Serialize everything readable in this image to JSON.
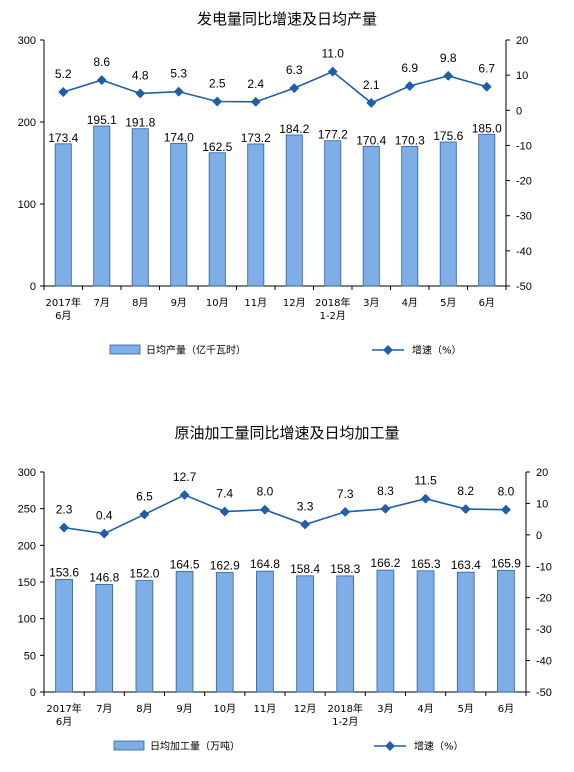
{
  "colors": {
    "bar": "#7eaee6",
    "bar_stroke": "#2f5f9e",
    "line": "#1f5ea8",
    "axis": "#000000"
  },
  "chart_data": [
    {
      "type": "bar",
      "title": "发电量同比增速及日均产量",
      "categories": [
        "2017年|6月",
        "7月",
        "8月",
        "9月",
        "10月",
        "11月",
        "12月",
        "2018年|1-2月",
        "3月",
        "4月",
        "5月",
        "6月"
      ],
      "ylim": [
        0,
        300
      ],
      "yticks": [
        "0",
        "100",
        "200",
        "300"
      ],
      "y2lim": [
        -50,
        20
      ],
      "y2ticks": [
        "20",
        "10",
        "0",
        "-10",
        "-20",
        "-30",
        "-40",
        "-50"
      ],
      "series": [
        {
          "name": "日均产量（亿千瓦时）",
          "type": "bar",
          "values": [
            173.4,
            195.1,
            191.8,
            174.0,
            162.5,
            173.2,
            184.2,
            177.2,
            170.4,
            170.3,
            175.6,
            185.0
          ],
          "labels": [
            "173.4",
            "195.1",
            "191.8",
            "174.0",
            "162.5",
            "173.2",
            "184.2",
            "177.2",
            "170.4",
            "170.3",
            "175.6",
            "185.0"
          ]
        },
        {
          "name": "增速（%）",
          "type": "line",
          "axis": "right",
          "values": [
            5.2,
            8.6,
            4.8,
            5.3,
            2.5,
            2.4,
            6.3,
            11.0,
            2.1,
            6.9,
            9.8,
            6.7
          ],
          "labels": [
            "5.2",
            "8.6",
            "4.8",
            "5.3",
            "2.5",
            "2.4",
            "6.3",
            "11.0",
            "2.1",
            "6.9",
            "9.8",
            "6.7"
          ]
        }
      ],
      "legend_position": "bottom"
    },
    {
      "type": "bar",
      "title": "原油加工量同比增速及日均加工量",
      "categories": [
        "2017年|6月",
        "7月",
        "8月",
        "9月",
        "10月",
        "11月",
        "12月",
        "2018年|1-2月",
        "3月",
        "4月",
        "5月",
        "6月"
      ],
      "ylim": [
        0,
        300
      ],
      "yticks": [
        "0",
        "50",
        "100",
        "150",
        "200",
        "250",
        "300"
      ],
      "y2lim": [
        -50,
        20
      ],
      "y2ticks": [
        "20",
        "10",
        "0",
        "-10",
        "-20",
        "-30",
        "-40",
        "-50"
      ],
      "series": [
        {
          "name": "日均加工量（万吨）",
          "type": "bar",
          "values": [
            153.6,
            146.8,
            152.0,
            164.5,
            162.9,
            164.8,
            158.4,
            158.3,
            166.2,
            165.3,
            163.4,
            165.9
          ],
          "labels": [
            "153.6",
            "146.8",
            "152.0",
            "164.5",
            "162.9",
            "164.8",
            "158.4",
            "158.3",
            "166.2",
            "165.3",
            "163.4",
            "165.9"
          ]
        },
        {
          "name": "增速（%）",
          "type": "line",
          "axis": "right",
          "values": [
            2.3,
            0.4,
            6.5,
            12.7,
            7.4,
            8.0,
            3.3,
            7.3,
            8.3,
            11.5,
            8.2,
            8.0
          ],
          "labels": [
            "2.3",
            "0.4",
            "6.5",
            "12.7",
            "7.4",
            "8.0",
            "3.3",
            "7.3",
            "8.3",
            "11.5",
            "8.2",
            "8.0"
          ]
        }
      ],
      "legend_position": "bottom"
    }
  ]
}
